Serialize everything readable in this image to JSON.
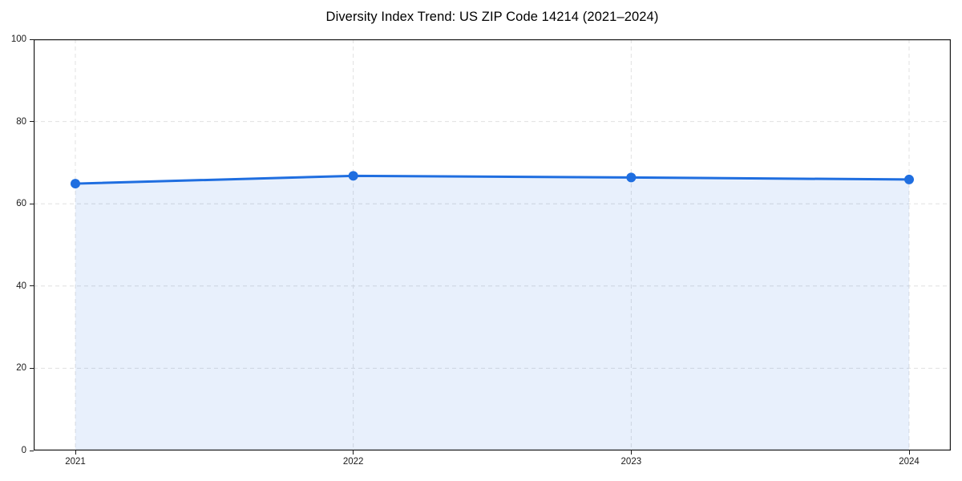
{
  "chart_data": {
    "type": "area",
    "title": "Diversity Index Trend: US ZIP Code 14214 (2021–2024)",
    "x": [
      2021,
      2022,
      2023,
      2024
    ],
    "xtick_labels": [
      "2021",
      "2022",
      "2023",
      "2024"
    ],
    "series": [
      {
        "name": "Diversity Index",
        "values": [
          64.9,
          66.8,
          66.4,
          65.9
        ]
      }
    ],
    "xlabel": "",
    "ylabel": "",
    "ylim": [
      0,
      100
    ],
    "yticks": [
      0,
      20,
      40,
      60,
      80,
      100
    ],
    "grid": "dashed",
    "legend": "none",
    "colors": {
      "line": "#1f6ee0",
      "marker": "#1f6ee0",
      "fill": "rgba(31,110,224,0.10)",
      "grid": "#e0e0e0",
      "spine": "#1a1a1a",
      "tick_text": "#1a1a1a",
      "title_text": "#000000"
    }
  }
}
